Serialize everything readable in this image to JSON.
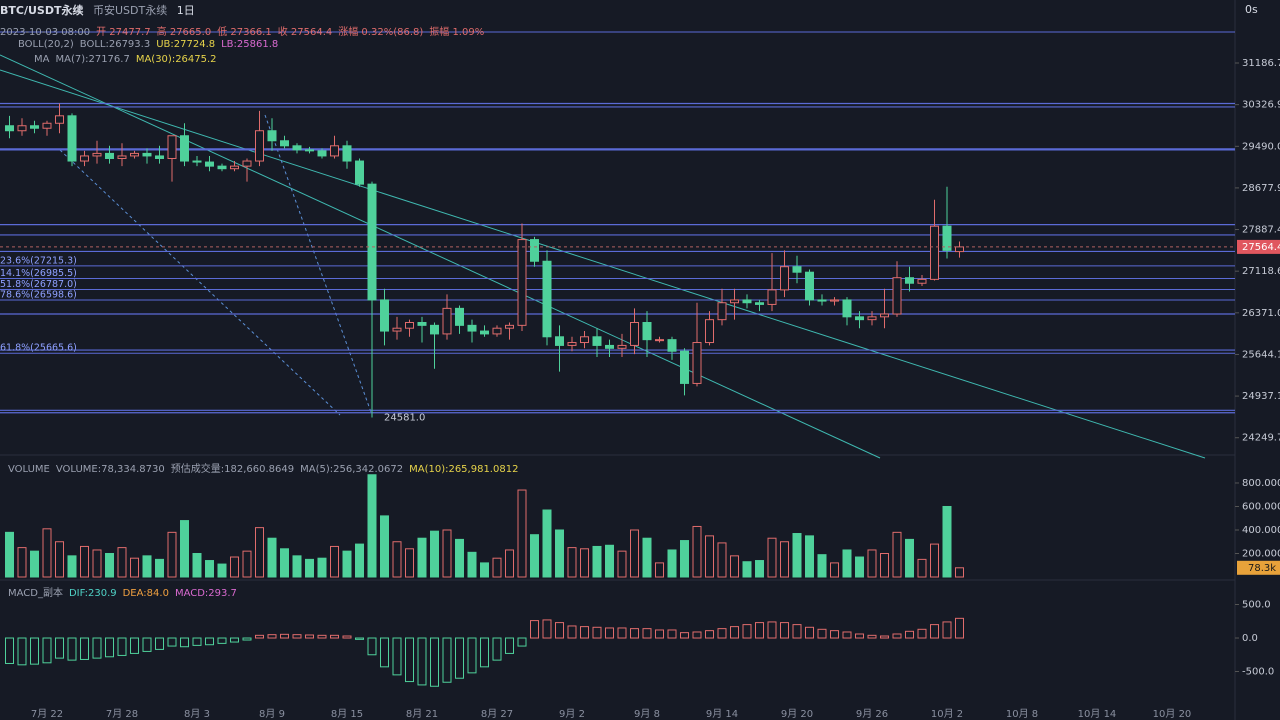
{
  "header": {
    "symbol": "BTC/USDT永续",
    "exchange": "币安USDT永续",
    "interval": "1日",
    "timer": "0s",
    "info": [
      "2023-10-03 08:00",
      "开 27477.7",
      "高 27665.0",
      "低 27366.1",
      "收 27564.4",
      "涨幅 0.32%(86.8)",
      "振幅 1.09%"
    ],
    "boll": [
      "BOLL(20,2)",
      "BOLL:26793.3",
      "UB:27724.8",
      "LB:25861.8"
    ],
    "ma": [
      "MA",
      "MA(7):27176.7",
      "MA(30):26475.2"
    ],
    "volume": [
      "VOLUME",
      "VOLUME:78,334.8730",
      "预估成交量:182,660.8649",
      "MA(5):256,342.0672",
      "MA(10):265,981.0812"
    ],
    "macd": [
      "MACD_副本",
      "DIF:230.9",
      "DEA:84.0",
      "MACD:293.7"
    ]
  },
  "chart_data": [
    {
      "type": "candlestick",
      "log_scale": true,
      "ylim": [
        23970,
        32100
      ],
      "yticks": [
        31186.7,
        30326.9,
        {
          "value": 29490,
          "label": "29490.0"
        },
        28677.9,
        27887.4,
        27118.6,
        {
          "value": 26371,
          "label": "26371.0"
        },
        25644.1,
        24937.1,
        24249.7
      ],
      "xticks": [
        "7月 22",
        "7月 28",
        "8月 3",
        "8月 9",
        "8月 15",
        "8月 21",
        "8月 27",
        "9月 2",
        "9月 8",
        "9月 14",
        "9月 20",
        "9月 26",
        "10月 2",
        "10月 8",
        "10月 14",
        "10月 20"
      ],
      "up_color": "#e06c6c",
      "down_color": "#4fd19b",
      "ohlc": [
        [
          29900,
          30100,
          29650,
          29800
        ],
        [
          29800,
          30050,
          29700,
          29900
        ],
        [
          29900,
          30000,
          29750,
          29850
        ],
        [
          29850,
          30000,
          29700,
          29950
        ],
        [
          29950,
          30350,
          29750,
          30100
        ],
        [
          30100,
          30150,
          29100,
          29200
        ],
        [
          29200,
          29400,
          29100,
          29300
        ],
        [
          29300,
          29600,
          29150,
          29350
        ],
        [
          29350,
          29500,
          29150,
          29250
        ],
        [
          29250,
          29550,
          29100,
          29300
        ],
        [
          29300,
          29400,
          29250,
          29350
        ],
        [
          29350,
          29450,
          29150,
          29300
        ],
        [
          29300,
          29500,
          29150,
          29250
        ],
        [
          29250,
          29700,
          28800,
          29700
        ],
        [
          29700,
          29950,
          29100,
          29200
        ],
        [
          29200,
          29300,
          29100,
          29180
        ],
        [
          29180,
          29300,
          29000,
          29100
        ],
        [
          29100,
          29150,
          29000,
          29050
        ],
        [
          29050,
          29200,
          29000,
          29100
        ],
        [
          29100,
          29250,
          28800,
          29200
        ],
        [
          29200,
          30200,
          29100,
          29800
        ],
        [
          29800,
          30050,
          29400,
          29600
        ],
        [
          29600,
          29700,
          29450,
          29500
        ],
        [
          29500,
          29550,
          29350,
          29420
        ],
        [
          29420,
          29480,
          29350,
          29400
        ],
        [
          29400,
          29450,
          29250,
          29300
        ],
        [
          29300,
          29700,
          29250,
          29500
        ],
        [
          29500,
          29600,
          29050,
          29200
        ],
        [
          29200,
          29250,
          28700,
          28750
        ],
        [
          28750,
          28800,
          24581,
          26600
        ],
        [
          26600,
          26800,
          25800,
          26050
        ],
        [
          26050,
          26300,
          25900,
          26100
        ],
        [
          26100,
          26250,
          25950,
          26200
        ],
        [
          26200,
          26300,
          25850,
          26150
        ],
        [
          26150,
          26200,
          25400,
          26000
        ],
        [
          26000,
          26700,
          25900,
          26450
        ],
        [
          26450,
          26500,
          26000,
          26150
        ],
        [
          26150,
          26250,
          25850,
          26050
        ],
        [
          26050,
          26150,
          25950,
          26000
        ],
        [
          26000,
          26150,
          25950,
          26100
        ],
        [
          26100,
          26200,
          25900,
          26150
        ],
        [
          26150,
          28000,
          26050,
          27700
        ],
        [
          27700,
          27750,
          27200,
          27300
        ],
        [
          27300,
          27500,
          25800,
          25950
        ],
        [
          25950,
          26150,
          25350,
          25800
        ],
        [
          25800,
          25950,
          25700,
          25850
        ],
        [
          25850,
          26050,
          25750,
          25950
        ],
        [
          25950,
          26100,
          25600,
          25800
        ],
        [
          25800,
          25900,
          25600,
          25750
        ],
        [
          25750,
          26000,
          25600,
          25800
        ],
        [
          25800,
          26450,
          25650,
          26200
        ],
        [
          26200,
          26400,
          25600,
          25900
        ],
        [
          25900,
          25950,
          25850,
          25900
        ],
        [
          25900,
          25950,
          25550,
          25700
        ],
        [
          25700,
          25750,
          24950,
          25150
        ],
        [
          25150,
          26550,
          25100,
          25850
        ],
        [
          25850,
          26400,
          25800,
          26250
        ],
        [
          26250,
          26800,
          26150,
          26550
        ],
        [
          26550,
          26800,
          26250,
          26600
        ],
        [
          26600,
          26700,
          26450,
          26550
        ],
        [
          26550,
          26600,
          26400,
          26520
        ],
        [
          26520,
          27450,
          26400,
          26780
        ],
        [
          26780,
          27500,
          26650,
          27200
        ],
        [
          27200,
          27400,
          26900,
          27100
        ],
        [
          27100,
          27150,
          26500,
          26600
        ],
        [
          26600,
          26700,
          26500,
          26580
        ],
        [
          26580,
          26650,
          26500,
          26600
        ],
        [
          26600,
          26650,
          26150,
          26300
        ],
        [
          26300,
          26400,
          26100,
          26250
        ],
        [
          26250,
          26400,
          26150,
          26300
        ],
        [
          26300,
          26800,
          26100,
          26350
        ],
        [
          26350,
          27300,
          26300,
          27000
        ],
        [
          27000,
          27200,
          26750,
          26900
        ],
        [
          26900,
          27050,
          26850,
          26970
        ],
        [
          26970,
          28450,
          26950,
          27950
        ],
        [
          27950,
          28700,
          27350,
          27500
        ],
        [
          27477.7,
          27665.0,
          27366.1,
          27564.4
        ]
      ],
      "levels": [
        {
          "value": 27215.3,
          "label": "23.6%(27215.3)"
        },
        {
          "value": 26985.5,
          "label": "14.1%(26985.5)"
        },
        {
          "value": 26787.0,
          "label": "51.8%(26787.0)"
        },
        {
          "value": 26598.6,
          "label": "78.6%(26598.6)"
        },
        {
          "value": 25665.6,
          "label": "61.8%(25665.6)"
        }
      ],
      "lines": [
        30350,
        30280,
        29440,
        29420,
        27980,
        27786.6,
        27480,
        26350,
        25720,
        24700,
        24660
      ],
      "low_label": "24581.0"
    },
    {
      "type": "bar",
      "ylim": [
        0,
        953000
      ],
      "yticks": [
        {
          "value": 800000,
          "label": "800.000"
        },
        {
          "value": 600000,
          "label": "600.000"
        },
        {
          "value": 400000,
          "label": "400.000"
        },
        {
          "value": 200000,
          "label": "200.000"
        }
      ],
      "values": [
        380000,
        250000,
        220000,
        410000,
        300000,
        180000,
        260000,
        230000,
        200000,
        250000,
        160000,
        180000,
        150000,
        380000,
        480000,
        200000,
        140000,
        110000,
        170000,
        220000,
        420000,
        330000,
        240000,
        180000,
        150000,
        160000,
        260000,
        220000,
        280000,
        870000,
        520000,
        300000,
        240000,
        330000,
        390000,
        400000,
        320000,
        210000,
        120000,
        160000,
        230000,
        740000,
        360000,
        570000,
        400000,
        250000,
        240000,
        260000,
        270000,
        220000,
        400000,
        330000,
        120000,
        230000,
        310000,
        430000,
        350000,
        290000,
        180000,
        130000,
        140000,
        330000,
        300000,
        370000,
        350000,
        190000,
        120000,
        230000,
        170000,
        230000,
        200000,
        380000,
        320000,
        150000,
        280000,
        600000,
        78334.873
      ],
      "last_label": "78.3k"
    },
    {
      "type": "bar",
      "ylim": [
        -1149,
        642
      ],
      "yticks": [
        {
          "value": 500,
          "label": "500.0"
        },
        {
          "value": 0,
          "label": "0.0"
        },
        {
          "value": -500,
          "label": "-500.0"
        }
      ],
      "values": [
        -380,
        -400,
        -390,
        -370,
        -300,
        -330,
        -320,
        -300,
        -280,
        -260,
        -230,
        -200,
        -170,
        -120,
        -130,
        -110,
        -100,
        -80,
        -60,
        -30,
        40,
        50,
        55,
        50,
        45,
        40,
        40,
        30,
        -20,
        -250,
        -430,
        -550,
        -650,
        -700,
        -720,
        -660,
        -600,
        -520,
        -430,
        -330,
        -230,
        -120,
        260,
        270,
        230,
        180,
        170,
        160,
        150,
        150,
        140,
        140,
        120,
        120,
        80,
        90,
        110,
        140,
        170,
        200,
        230,
        240,
        230,
        200,
        160,
        130,
        110,
        90,
        60,
        40,
        30,
        60,
        100,
        130,
        200,
        240,
        293.7
      ]
    }
  ]
}
